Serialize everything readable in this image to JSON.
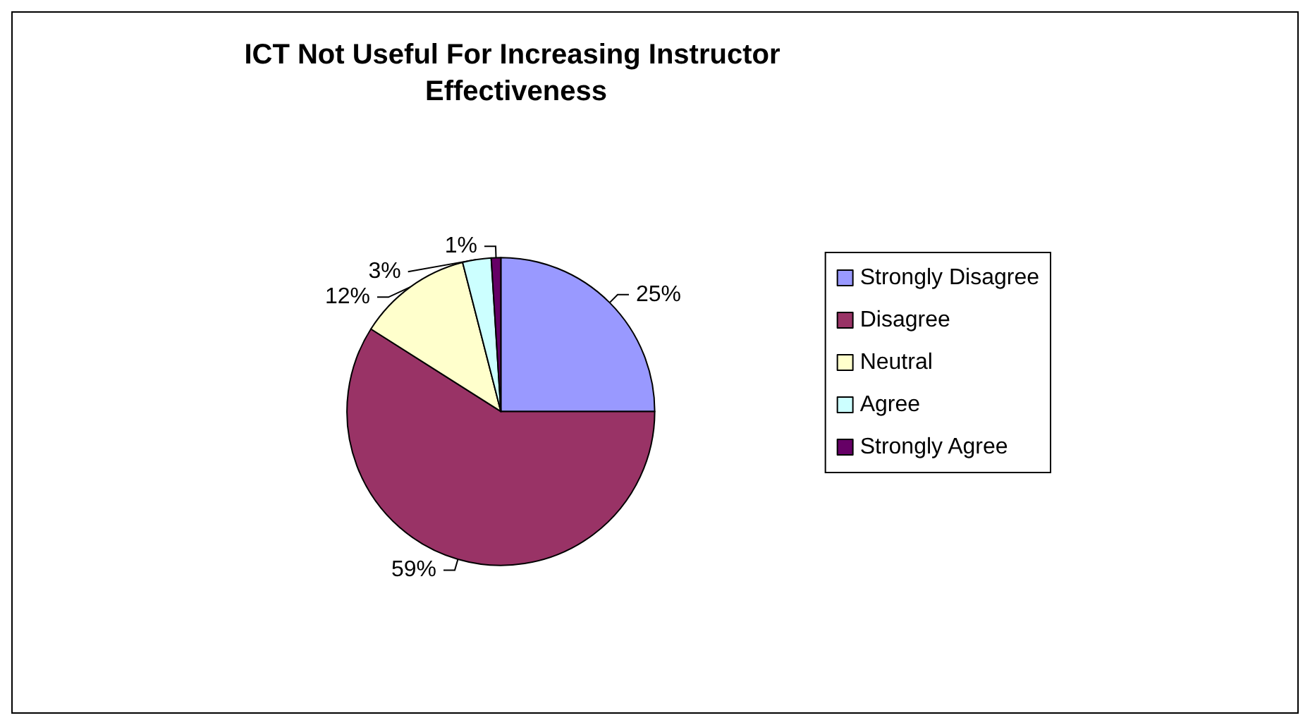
{
  "chart_data": {
    "type": "pie",
    "title": "ICT Not Useful For Increasing Instructor Effectiveness",
    "categories": [
      "Strongly Disagree",
      "Disagree",
      "Neutral",
      "Agree",
      "Strongly Agree"
    ],
    "values": [
      25,
      59,
      12,
      3,
      1
    ],
    "colors": [
      "#9999ff",
      "#993366",
      "#ffffcc",
      "#ccffff",
      "#660066"
    ],
    "value_labels": [
      "25%",
      "59%",
      "12%",
      "3%",
      "1%"
    ],
    "legend": "right"
  }
}
